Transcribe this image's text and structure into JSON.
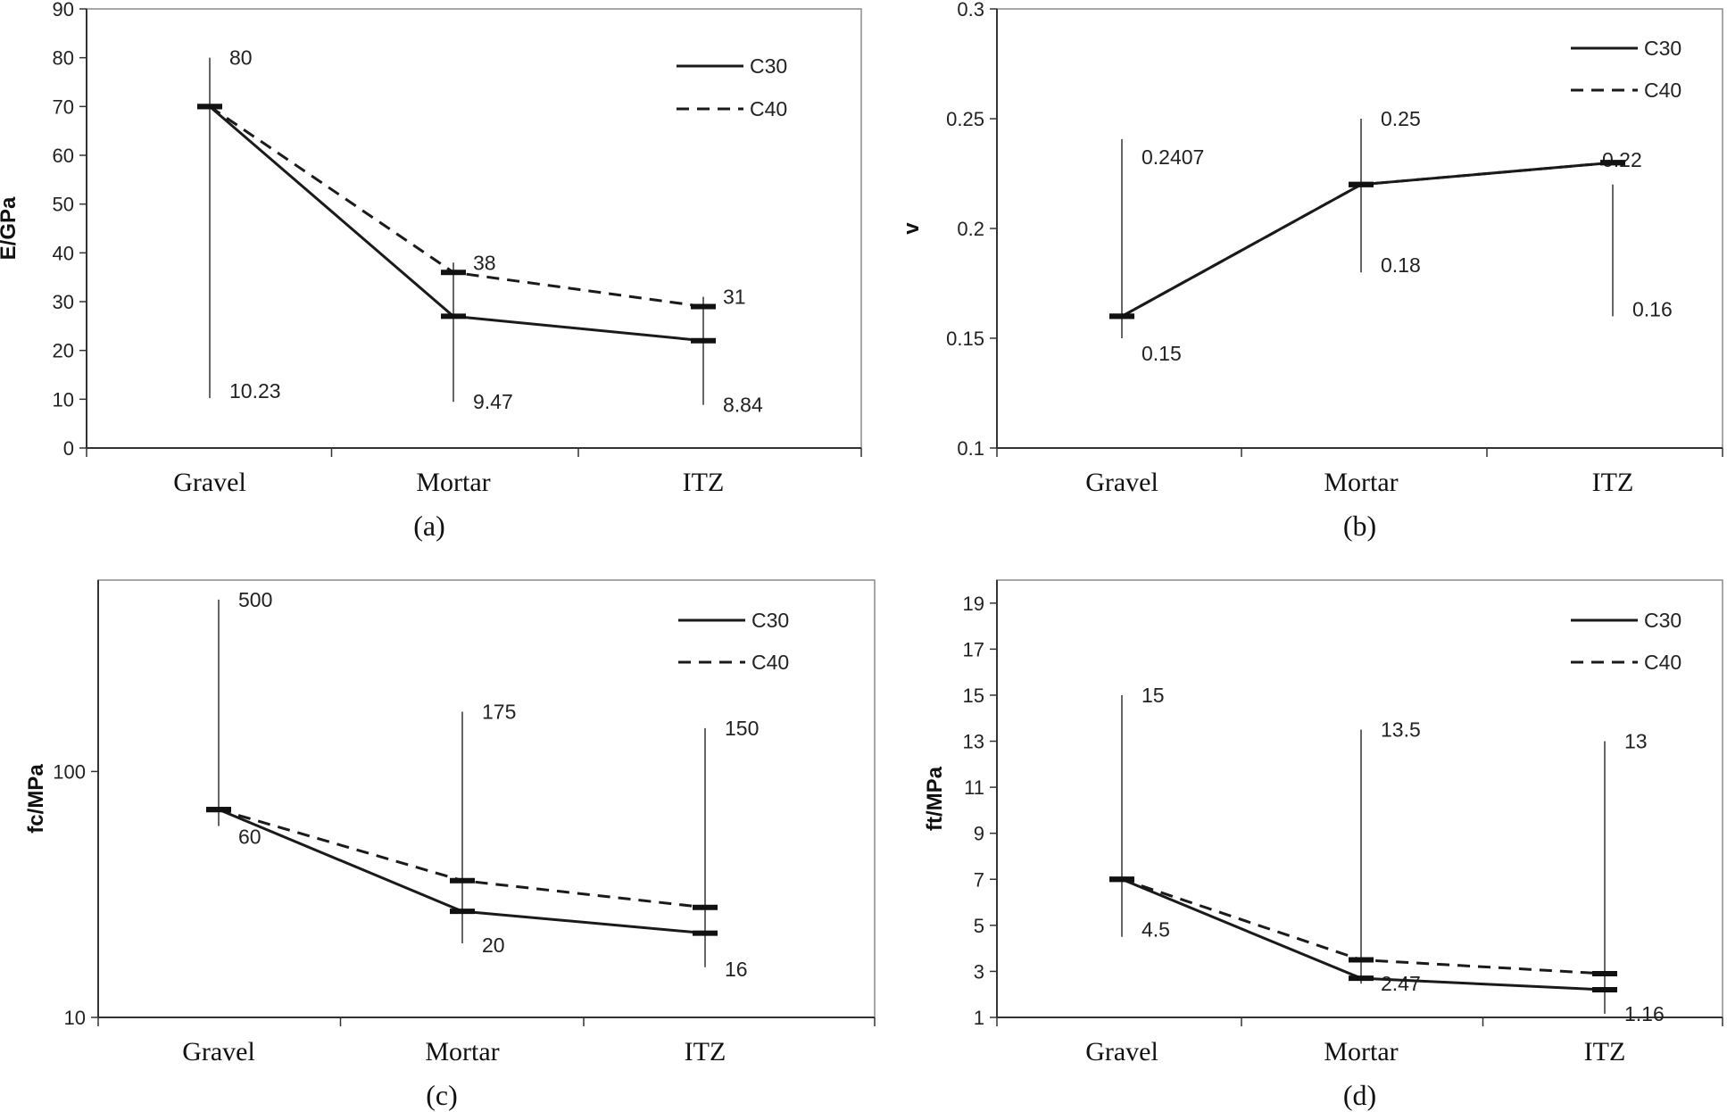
{
  "chart_data": [
    {
      "type": "line",
      "panel_label": "(a)",
      "ylabel": "E/GPa",
      "yscale": "linear",
      "ylim": [
        0,
        90
      ],
      "yticks": [
        0,
        10,
        20,
        30,
        40,
        50,
        60,
        70,
        80,
        90
      ],
      "ytick_labels": [
        "0",
        "10",
        "20",
        "30",
        "40",
        "50",
        "60",
        "70",
        "80",
        "90"
      ],
      "categories": [
        "Gravel",
        "Mortar",
        "ITZ"
      ],
      "series": [
        {
          "name": "C30",
          "style": "solid",
          "values": [
            70,
            27,
            22
          ]
        },
        {
          "name": "C40",
          "style": "dashed",
          "values": [
            70,
            36,
            29
          ]
        }
      ],
      "ranges": [
        {
          "low": 10.23,
          "high": 80,
          "low_label": "10.23",
          "high_label": "80"
        },
        {
          "low": 9.47,
          "high": 38,
          "low_label": "9.47",
          "high_label": "38"
        },
        {
          "low": 8.84,
          "high": 31,
          "low_label": "8.84",
          "high_label": "31"
        }
      ],
      "legend": "top-right"
    },
    {
      "type": "line",
      "panel_label": "(b)",
      "ylabel": "v",
      "yscale": "linear",
      "ylim": [
        0.1,
        0.3
      ],
      "yticks": [
        0.1,
        0.15,
        0.2,
        0.25,
        0.3
      ],
      "ytick_labels": [
        "0.1",
        "0.15",
        "0.2",
        "0.25",
        "0.3"
      ],
      "categories": [
        "Gravel",
        "Mortar",
        "ITZ"
      ],
      "series": [
        {
          "name": "C30",
          "style": "solid",
          "values": [
            0.16,
            0.22,
            0.23
          ]
        },
        {
          "name": "C40",
          "style": "dashed",
          "values": [
            0.16,
            0.22,
            0.23
          ]
        }
      ],
      "ranges": [
        {
          "low": 0.15,
          "high": 0.2407,
          "low_label": "0.15",
          "high_label": "0.2407"
        },
        {
          "low": 0.18,
          "high": 0.25,
          "low_label": "0.18",
          "high_label": "0.25"
        },
        {
          "low": 0.16,
          "high": 0.22,
          "low_label": "0.16",
          "high_label": "0.22"
        }
      ],
      "legend": "top-right"
    },
    {
      "type": "line",
      "panel_label": "(c)",
      "ylabel": "fc/MPa",
      "yscale": "log",
      "ylim": [
        10,
        600
      ],
      "yticks": [
        10,
        100
      ],
      "ytick_labels": [
        "10",
        "100"
      ],
      "categories": [
        "Gravel",
        "Mortar",
        "ITZ"
      ],
      "series": [
        {
          "name": "C30",
          "style": "solid",
          "values": [
            70,
            27,
            22
          ]
        },
        {
          "name": "C40",
          "style": "dashed",
          "values": [
            70,
            36,
            28
          ]
        }
      ],
      "ranges": [
        {
          "low": 60,
          "high": 500,
          "low_label": "60",
          "high_label": "500"
        },
        {
          "low": 20,
          "high": 175,
          "low_label": "20",
          "high_label": "175"
        },
        {
          "low": 16,
          "high": 150,
          "low_label": "16",
          "high_label": "150"
        }
      ],
      "legend": "top-right"
    },
    {
      "type": "line",
      "panel_label": "(d)",
      "ylabel": "ft/MPa",
      "yscale": "linear",
      "ylim": [
        1,
        20
      ],
      "yticks": [
        1,
        3,
        5,
        7,
        9,
        11,
        13,
        15,
        17,
        19
      ],
      "ytick_labels": [
        "1",
        "3",
        "5",
        "7",
        "9",
        "11",
        "13",
        "15",
        "17",
        "19"
      ],
      "categories": [
        "Gravel",
        "Mortar",
        "ITZ"
      ],
      "series": [
        {
          "name": "C30",
          "style": "solid",
          "values": [
            7,
            2.7,
            2.2
          ]
        },
        {
          "name": "C40",
          "style": "dashed",
          "values": [
            7,
            3.5,
            2.9
          ]
        }
      ],
      "ranges": [
        {
          "low": 4.5,
          "high": 15,
          "low_label": "4.5",
          "high_label": "15"
        },
        {
          "low": 2.47,
          "high": 13.5,
          "low_label": "2.47",
          "high_label": "13.5"
        },
        {
          "low": 1.16,
          "high": 13,
          "low_label": "1.16",
          "high_label": "13"
        }
      ],
      "legend": "top-right"
    }
  ]
}
